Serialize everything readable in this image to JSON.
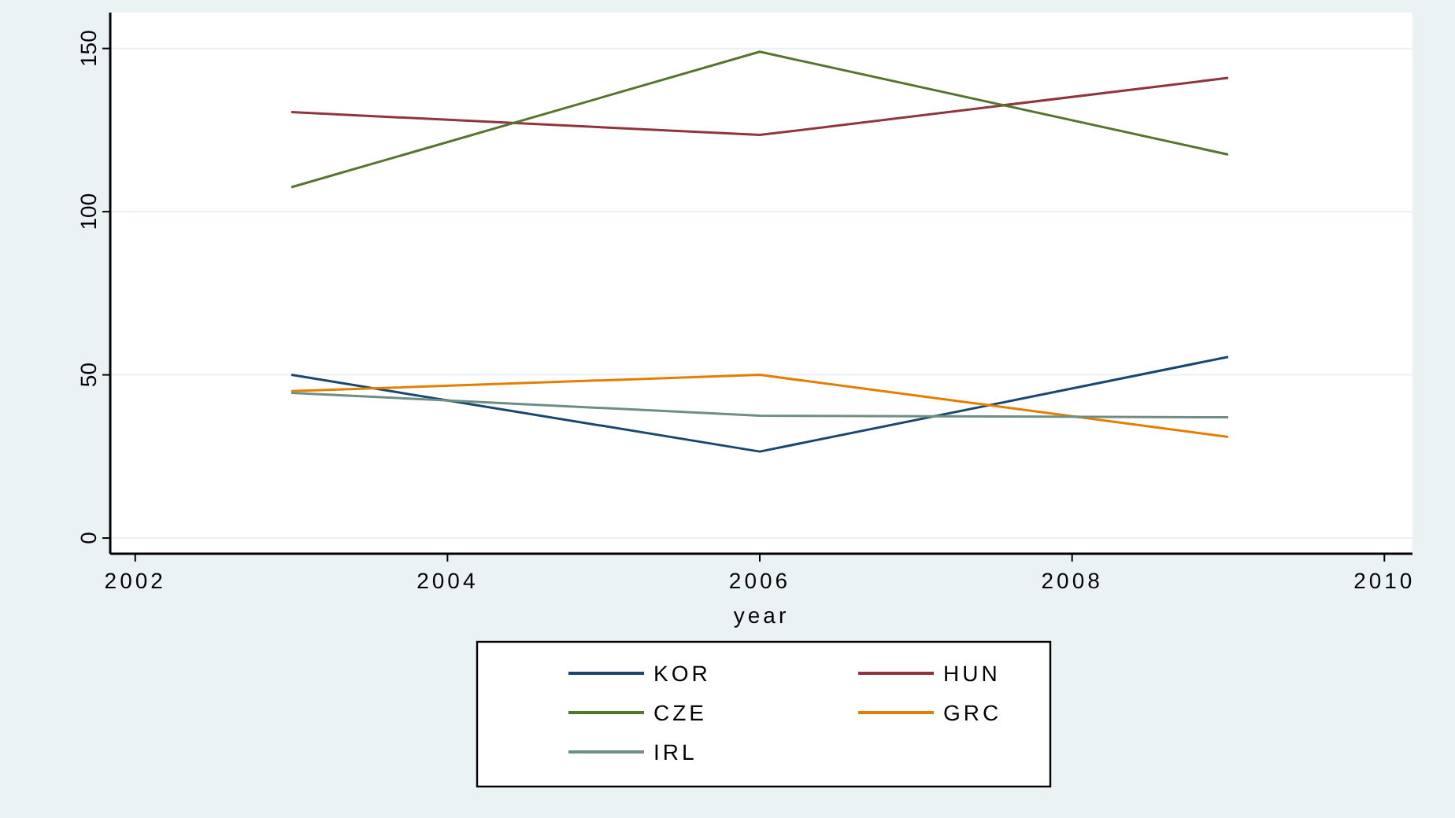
{
  "chart_data": {
    "type": "line",
    "xlabel": "year",
    "x": [
      2003,
      2006,
      2009
    ],
    "series": [
      {
        "name": "KOR",
        "color": "#1a476f",
        "values": [
          50,
          26.5,
          55.5
        ]
      },
      {
        "name": "HUN",
        "color": "#90353b",
        "values": [
          130.5,
          123.5,
          141
        ]
      },
      {
        "name": "CZE",
        "color": "#55752f",
        "values": [
          107.5,
          149,
          117.5
        ]
      },
      {
        "name": "GRC",
        "color": "#e37e00",
        "values": [
          45,
          50,
          31
        ]
      },
      {
        "name": "IRL",
        "color": "#6e8e84",
        "values": [
          44.5,
          37.5,
          37
        ]
      }
    ],
    "xlim": [
      2001.84,
      2010.18
    ],
    "xticks": [
      2002,
      2004,
      2006,
      2008,
      2010
    ],
    "ylim": [
      -4.8,
      161
    ],
    "yticks": [
      0,
      50,
      100,
      150
    ],
    "grid": "y",
    "legend": "bottom",
    "marker": "none",
    "line_style": "solid"
  }
}
